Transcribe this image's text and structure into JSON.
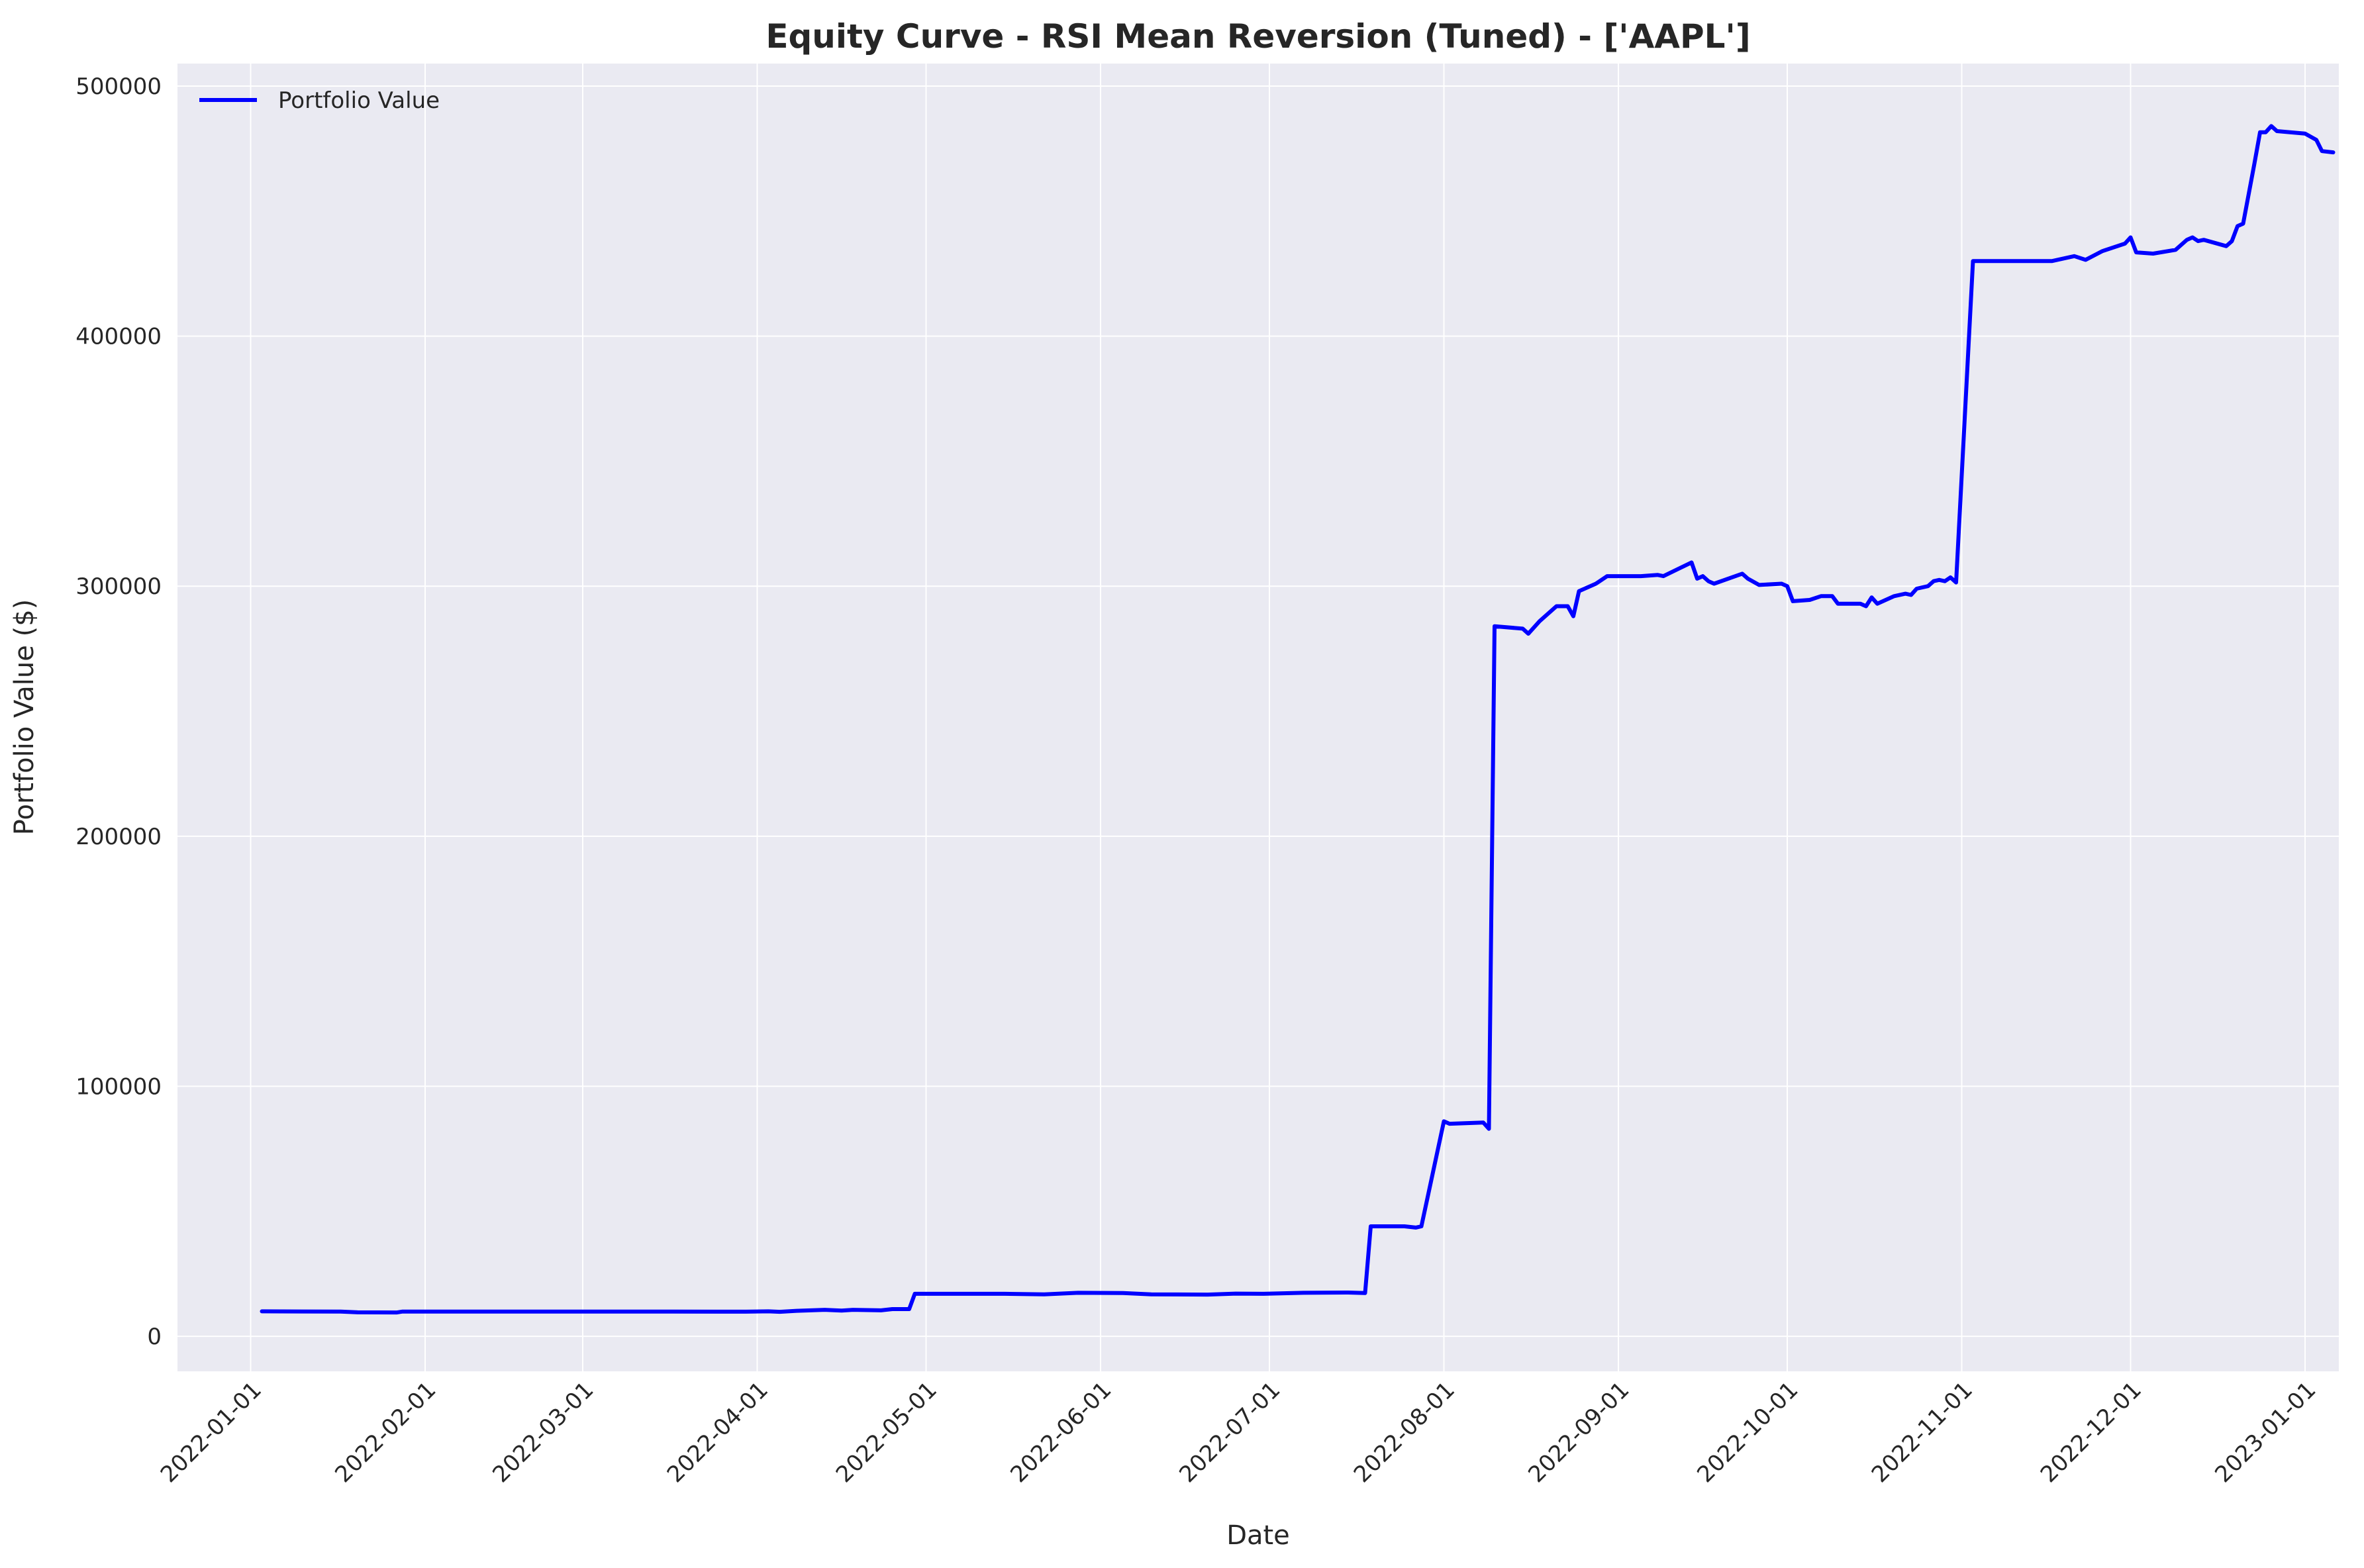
{
  "colors": {
    "plot_bg": "#EAEAF2",
    "grid": "#FFFFFF",
    "line": "#0000FF",
    "text": "#262626"
  },
  "chart_data": {
    "type": "line",
    "title": "Equity Curve - RSI Mean Reversion (Tuned) - ['AAPL']",
    "xlabel": "Date",
    "ylabel": "Portfolio Value ($)",
    "x_tick_labels": [
      "2022-01-01",
      "2022-02-01",
      "2022-03-01",
      "2022-04-01",
      "2022-05-01",
      "2022-06-01",
      "2022-07-01",
      "2022-08-01",
      "2022-09-01",
      "2022-10-01",
      "2022-11-01",
      "2022-12-01",
      "2023-01-01"
    ],
    "y_ticks": [
      0,
      100000,
      200000,
      300000,
      400000,
      500000
    ],
    "y_tick_labels": [
      "0",
      "100000",
      "200000",
      "300000",
      "400000",
      "500000"
    ],
    "xlim": [
      "2021-12-19",
      "2023-01-07"
    ],
    "ylim": [
      -14000,
      509000
    ],
    "grid": true,
    "legend_position": "top-left",
    "series": [
      {
        "name": "Portfolio Value",
        "points": [
          [
            "2022-01-03",
            10000
          ],
          [
            "2022-01-10",
            9950
          ],
          [
            "2022-01-17",
            9900
          ],
          [
            "2022-01-20",
            9600
          ],
          [
            "2022-01-27",
            9550
          ],
          [
            "2022-01-28",
            9900
          ],
          [
            "2022-02-15",
            9900
          ],
          [
            "2022-03-15",
            9900
          ],
          [
            "2022-03-25",
            9850
          ],
          [
            "2022-03-30",
            9850
          ],
          [
            "2022-04-03",
            10000
          ],
          [
            "2022-04-05",
            9800
          ],
          [
            "2022-04-08",
            10200
          ],
          [
            "2022-04-13",
            10600
          ],
          [
            "2022-04-16",
            10300
          ],
          [
            "2022-04-18",
            10600
          ],
          [
            "2022-04-23",
            10400
          ],
          [
            "2022-04-25",
            10900
          ],
          [
            "2022-04-28",
            10900
          ],
          [
            "2022-04-29",
            17000
          ],
          [
            "2022-05-15",
            17000
          ],
          [
            "2022-05-22",
            16800
          ],
          [
            "2022-05-28",
            17400
          ],
          [
            "2022-06-05",
            17300
          ],
          [
            "2022-06-10",
            16800
          ],
          [
            "2022-06-20",
            16700
          ],
          [
            "2022-06-25",
            17100
          ],
          [
            "2022-06-30",
            17000
          ],
          [
            "2022-07-07",
            17400
          ],
          [
            "2022-07-15",
            17500
          ],
          [
            "2022-07-18",
            17300
          ],
          [
            "2022-07-19",
            44000
          ],
          [
            "2022-07-25",
            44000
          ],
          [
            "2022-07-27",
            43500
          ],
          [
            "2022-07-28",
            44000
          ],
          [
            "2022-08-01",
            86000
          ],
          [
            "2022-08-02",
            85000
          ],
          [
            "2022-08-08",
            85500
          ],
          [
            "2022-08-09",
            83000
          ],
          [
            "2022-08-10",
            284000
          ],
          [
            "2022-08-15",
            283000
          ],
          [
            "2022-08-16",
            281000
          ],
          [
            "2022-08-18",
            286000
          ],
          [
            "2022-08-21",
            292000
          ],
          [
            "2022-08-23",
            292000
          ],
          [
            "2022-08-24",
            288000
          ],
          [
            "2022-08-25",
            298000
          ],
          [
            "2022-08-28",
            301000
          ],
          [
            "2022-08-30",
            304000
          ],
          [
            "2022-09-05",
            304000
          ],
          [
            "2022-09-08",
            304500
          ],
          [
            "2022-09-09",
            304000
          ],
          [
            "2022-09-14",
            309500
          ],
          [
            "2022-09-15",
            303000
          ],
          [
            "2022-09-16",
            304000
          ],
          [
            "2022-09-17",
            302000
          ],
          [
            "2022-09-18",
            301000
          ],
          [
            "2022-09-23",
            305000
          ],
          [
            "2022-09-24",
            303000
          ],
          [
            "2022-09-26",
            300500
          ],
          [
            "2022-09-30",
            301000
          ],
          [
            "2022-10-01",
            300000
          ],
          [
            "2022-10-02",
            294000
          ],
          [
            "2022-10-05",
            294500
          ],
          [
            "2022-10-07",
            296000
          ],
          [
            "2022-10-09",
            296000
          ],
          [
            "2022-10-10",
            293000
          ],
          [
            "2022-10-14",
            293000
          ],
          [
            "2022-10-15",
            292000
          ],
          [
            "2022-10-16",
            295500
          ],
          [
            "2022-10-17",
            293000
          ],
          [
            "2022-10-20",
            296000
          ],
          [
            "2022-10-22",
            297000
          ],
          [
            "2022-10-23",
            296500
          ],
          [
            "2022-10-24",
            299000
          ],
          [
            "2022-10-26",
            300000
          ],
          [
            "2022-10-27",
            302000
          ],
          [
            "2022-10-28",
            302500
          ],
          [
            "2022-10-29",
            302000
          ],
          [
            "2022-10-30",
            303500
          ],
          [
            "2022-10-31",
            301500
          ],
          [
            "2022-11-03",
            430000
          ],
          [
            "2022-11-17",
            430000
          ],
          [
            "2022-11-21",
            432000
          ],
          [
            "2022-11-23",
            430500
          ],
          [
            "2022-11-26",
            434000
          ],
          [
            "2022-11-30",
            437000
          ],
          [
            "2022-12-01",
            439500
          ],
          [
            "2022-12-02",
            433500
          ],
          [
            "2022-12-05",
            433000
          ],
          [
            "2022-12-09",
            434500
          ],
          [
            "2022-12-11",
            438500
          ],
          [
            "2022-12-12",
            439500
          ],
          [
            "2022-12-13",
            438000
          ],
          [
            "2022-12-14",
            438500
          ],
          [
            "2022-12-18",
            436000
          ],
          [
            "2022-12-19",
            438000
          ],
          [
            "2022-12-20",
            444000
          ],
          [
            "2022-12-21",
            445000
          ],
          [
            "2022-12-23",
            469000
          ],
          [
            "2022-12-24",
            481500
          ],
          [
            "2022-12-25",
            481500
          ],
          [
            "2022-12-26",
            484000
          ],
          [
            "2022-12-27",
            482000
          ],
          [
            "2023-01-01",
            481000
          ],
          [
            "2023-01-03",
            478500
          ],
          [
            "2023-01-04",
            474000
          ],
          [
            "2023-01-06",
            473500
          ]
        ]
      }
    ]
  }
}
